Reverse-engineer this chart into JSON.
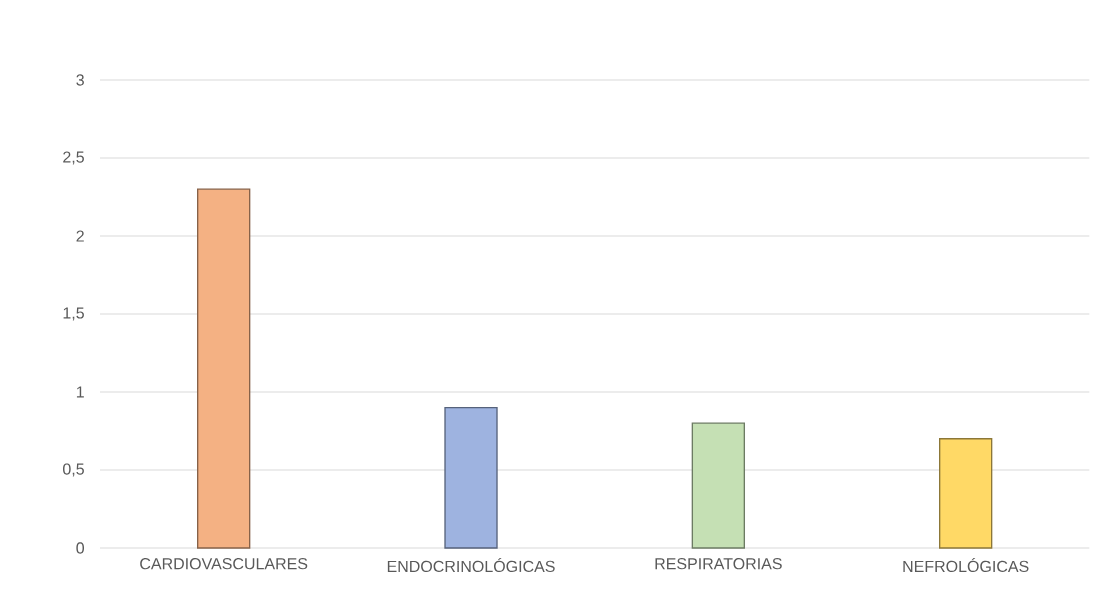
{
  "chart_data": {
    "type": "bar",
    "categories": [
      "CARDIOVASCULARES",
      "ENDOCRINOLÓGICAS",
      "RESPIRATORIAS",
      "NEFROLÓGICAS"
    ],
    "values": [
      2.3,
      0.9,
      0.8,
      0.7
    ],
    "colors": [
      "#f4b183",
      "#9eb3e0",
      "#c5e0b4",
      "#ffd966"
    ],
    "ylim": [
      0,
      3
    ],
    "yticks": [
      0,
      {
        "value": 0.5,
        "label": "0,5"
      },
      1,
      {
        "value": 1.5,
        "label": "1,5"
      },
      2,
      {
        "value": 2.5,
        "label": "2,5"
      },
      3
    ],
    "grid": "y"
  }
}
